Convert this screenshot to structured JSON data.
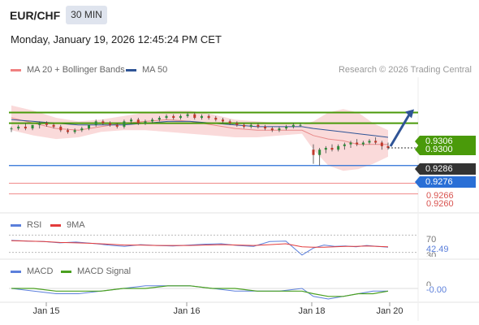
{
  "header": {
    "symbol": "EUR/CHF",
    "timeframe": "30 MIN",
    "datetime": "Monday, January 19, 2026 12:45:24 PM CET"
  },
  "legend": {
    "bollinger": "MA 20 + Bollinger Bands",
    "ma50": "MA 50",
    "credit": "Research © 2026 Trading Central"
  },
  "colors": {
    "bollinger": "#f08080",
    "ma50": "#2f5496",
    "green_level": "#4a9a0a",
    "blue_level": "#2a6fd6",
    "red_level": "#d9534f",
    "last_price": "#333333",
    "rsi": "#5b7fdb",
    "signal_red": "#e33b3b",
    "macd": "#5b7fdb",
    "macd_signal": "#4aa020"
  },
  "price_tags": [
    {
      "value": "0.9306",
      "style": "green"
    },
    {
      "value": "0.9300",
      "style": "green"
    },
    {
      "value": "0.9286",
      "style": "dark"
    },
    {
      "value": "0.9276",
      "style": "blue"
    },
    {
      "value": "0.9266",
      "style": "red"
    },
    {
      "value": "0.9260",
      "style": "red"
    }
  ],
  "rsi_panel": {
    "label": "RSI",
    "signal_label": "9MA",
    "level_high": "70",
    "value": "42.49",
    "level_low": "30"
  },
  "macd_panel": {
    "label": "MACD",
    "signal_label": "MACD Signal",
    "zero": "0",
    "value": "-0.00"
  },
  "x_axis": {
    "dates": [
      "Jan 15",
      "Jan 16",
      "Jan 18",
      "Jan 20"
    ]
  },
  "chart_data": {
    "type": "candlestick",
    "title": "EUR/CHF",
    "ylim": [
      0.9252,
      0.9326
    ],
    "candles": [
      [
        0.9297,
        0.9298,
        0.9295,
        0.9297
      ],
      [
        0.9297,
        0.9299,
        0.9296,
        0.9298
      ],
      [
        0.9298,
        0.93,
        0.9296,
        0.9297
      ],
      [
        0.9297,
        0.9299,
        0.9296,
        0.9299
      ],
      [
        0.9299,
        0.9301,
        0.9297,
        0.93
      ],
      [
        0.93,
        0.9301,
        0.9298,
        0.9299
      ],
      [
        0.9299,
        0.93,
        0.9297,
        0.9298
      ],
      [
        0.9298,
        0.9299,
        0.9295,
        0.9296
      ],
      [
        0.9296,
        0.9297,
        0.9294,
        0.9295
      ],
      [
        0.9295,
        0.9297,
        0.9294,
        0.9296
      ],
      [
        0.9296,
        0.9298,
        0.9295,
        0.9297
      ],
      [
        0.9297,
        0.9299,
        0.9296,
        0.9299
      ],
      [
        0.9299,
        0.9302,
        0.9298,
        0.9301
      ],
      [
        0.9301,
        0.9302,
        0.9299,
        0.93
      ],
      [
        0.93,
        0.9301,
        0.9298,
        0.9299
      ],
      [
        0.9299,
        0.93,
        0.9297,
        0.9298
      ],
      [
        0.9298,
        0.9302,
        0.9297,
        0.9301
      ],
      [
        0.9301,
        0.9303,
        0.93,
        0.9302
      ],
      [
        0.9302,
        0.9303,
        0.9299,
        0.93
      ],
      [
        0.93,
        0.9302,
        0.9299,
        0.9301
      ],
      [
        0.9301,
        0.9303,
        0.93,
        0.9302
      ],
      [
        0.9302,
        0.9304,
        0.9301,
        0.9303
      ],
      [
        0.9303,
        0.9305,
        0.9302,
        0.9304
      ],
      [
        0.9304,
        0.9305,
        0.9302,
        0.9303
      ],
      [
        0.9303,
        0.9305,
        0.9302,
        0.9304
      ],
      [
        0.9304,
        0.9306,
        0.9303,
        0.9305
      ],
      [
        0.9305,
        0.9306,
        0.9302,
        0.9303
      ],
      [
        0.9303,
        0.9305,
        0.9302,
        0.9304
      ],
      [
        0.9304,
        0.9305,
        0.9302,
        0.9303
      ],
      [
        0.9303,
        0.9304,
        0.9301,
        0.9302
      ],
      [
        0.9302,
        0.9303,
        0.93,
        0.9301
      ],
      [
        0.9301,
        0.9302,
        0.9299,
        0.93
      ],
      [
        0.93,
        0.9301,
        0.9298,
        0.9299
      ],
      [
        0.9299,
        0.93,
        0.9297,
        0.9298
      ],
      [
        0.9298,
        0.93,
        0.9297,
        0.9299
      ],
      [
        0.9299,
        0.93,
        0.9297,
        0.9298
      ],
      [
        0.9298,
        0.9299,
        0.9296,
        0.9297
      ],
      [
        0.9297,
        0.9298,
        0.9295,
        0.9296
      ],
      [
        0.9296,
        0.9298,
        0.9295,
        0.9297
      ],
      [
        0.9297,
        0.9299,
        0.9296,
        0.9298
      ],
      [
        0.9298,
        0.93,
        0.9297,
        0.9299
      ],
      [
        0.9299,
        0.93,
        0.9298,
        0.9299
      ],
      [
        0.9285,
        0.9288,
        0.9277,
        0.9282
      ],
      [
        0.9282,
        0.9286,
        0.9276,
        0.9285
      ],
      [
        0.9285,
        0.9287,
        0.9283,
        0.9286
      ],
      [
        0.9286,
        0.9288,
        0.9284,
        0.9285
      ],
      [
        0.9285,
        0.9288,
        0.9284,
        0.9287
      ],
      [
        0.9287,
        0.9289,
        0.9285,
        0.9288
      ],
      [
        0.9288,
        0.929,
        0.9286,
        0.9289
      ],
      [
        0.9289,
        0.9291,
        0.9287,
        0.9288
      ],
      [
        0.9288,
        0.929,
        0.9287,
        0.9289
      ],
      [
        0.9289,
        0.9291,
        0.9288,
        0.929
      ],
      [
        0.929,
        0.9292,
        0.9288,
        0.9289
      ],
      [
        0.9289,
        0.929,
        0.9285,
        0.9287
      ],
      [
        0.9287,
        0.9289,
        0.9285,
        0.9286
      ]
    ],
    "bollinger_upper": [
      0.931,
      0.9307,
      0.9303,
      0.9301,
      0.9302,
      0.9304,
      0.9306,
      0.9307,
      0.9307,
      0.9305,
      0.9302,
      0.9301,
      0.93,
      0.9299,
      0.9301,
      0.9306,
      0.9308,
      0.9306,
      0.93,
      0.9296
    ],
    "bollinger_lower": [
      0.9296,
      0.9293,
      0.9291,
      0.9292,
      0.9295,
      0.9296,
      0.9296,
      0.9295,
      0.9294,
      0.9293,
      0.9292,
      0.9292,
      0.9293,
      0.9294,
      0.9285,
      0.9276,
      0.9273,
      0.9274,
      0.9277,
      0.9281
    ],
    "ma20": [
      0.9303,
      0.93,
      0.9297,
      0.9296,
      0.9298,
      0.93,
      0.9301,
      0.9302,
      0.9301,
      0.9299,
      0.9297,
      0.9296,
      0.9296,
      0.9296,
      0.9293,
      0.9291,
      0.929,
      0.9288,
      0.9288,
      0.9288
    ],
    "ma50": [
      0.9302,
      0.9301,
      0.93,
      0.9299,
      0.9299,
      0.9299,
      0.93,
      0.9301,
      0.9301,
      0.93,
      0.9299,
      0.9298,
      0.9298,
      0.9298,
      0.9297,
      0.9296,
      0.9295,
      0.9294,
      0.9293,
      0.9292
    ],
    "levels": [
      {
        "value": 0.9306,
        "kind": "resistance"
      },
      {
        "value": 0.93,
        "kind": "resistance"
      },
      {
        "value": 0.9276,
        "kind": "pivot"
      },
      {
        "value": 0.9266,
        "kind": "support"
      },
      {
        "value": 0.926,
        "kind": "support"
      }
    ],
    "last_price": 0.9286,
    "target_arrow": {
      "from": 0.9286,
      "to": 0.9306
    },
    "rsi": {
      "ylim": [
        20,
        80
      ],
      "levels": [
        70,
        30
      ],
      "value": 42.49,
      "rsi_values": [
        58,
        56,
        55,
        52,
        54,
        51,
        47,
        44,
        48,
        46,
        45,
        47,
        49,
        50,
        46,
        44,
        55,
        56,
        24,
        40,
        47,
        44,
        45,
        43,
        46,
        44,
        42
      ],
      "ma_values": [
        57,
        56,
        55,
        53,
        52,
        51,
        49,
        47,
        47,
        46,
        46,
        46,
        47,
        48,
        47,
        46,
        48,
        50,
        43,
        42,
        42,
        43,
        44,
        44,
        45,
        44,
        43
      ]
    },
    "macd": {
      "ylim": [
        -0.0004,
        0.0004
      ],
      "value": -0.0,
      "macd_values": [
        0.0,
        -0.0001,
        -0.0002,
        -0.0002,
        -0.0001,
        0.0,
        0.0001,
        0.0001,
        0.0001,
        0.0,
        -0.0001,
        -0.0001,
        -0.0001,
        0.0,
        -0.0003,
        -0.0004,
        -0.0003,
        -0.0002,
        -0.0001,
        -0.0001
      ],
      "signal_values": [
        0.0,
        0.0,
        -0.0001,
        -0.0001,
        -0.0001,
        0.0,
        0.0,
        0.0001,
        0.0001,
        0.0,
        0.0,
        -0.0001,
        -0.0001,
        -0.0001,
        -0.0002,
        -0.0003,
        -0.0003,
        -0.0002,
        -0.0002,
        -0.0001
      ]
    }
  }
}
